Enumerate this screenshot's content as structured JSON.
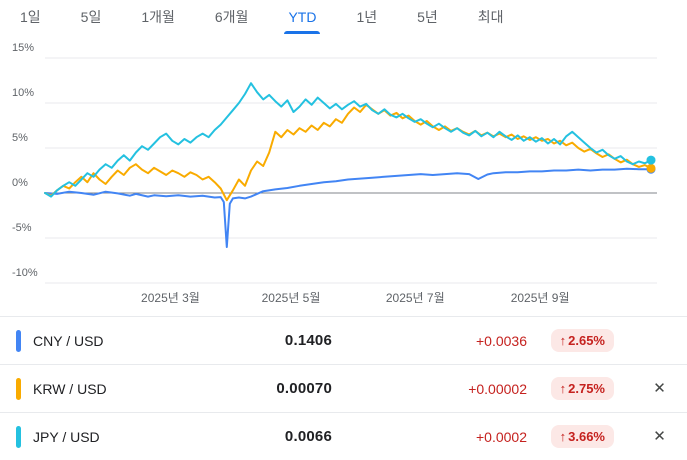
{
  "tabs": [
    "1일",
    "5일",
    "1개월",
    "6개월",
    "YTD",
    "1년",
    "5년",
    "최대"
  ],
  "ui": {
    "accent_color": "#1a73e8",
    "close_icon": "✕",
    "negative_text_color": "#c5221f",
    "badge_bg_color": "#fce8e6"
  },
  "chart_data": {
    "type": "line",
    "title": "",
    "xlabel": "",
    "ylabel": "",
    "ylim": [
      -10,
      15
    ],
    "yticks": [
      15,
      10,
      5,
      0,
      -5,
      -10
    ],
    "ytick_suffix": "%",
    "grid": true,
    "grid_color": "#e8eaed",
    "zero_line_color": "#80868b",
    "legend_position": "bottom-table",
    "xticks": [
      {
        "label": "2025년 3월",
        "pos": 0.205
      },
      {
        "label": "2025년 5월",
        "pos": 0.402
      },
      {
        "label": "2025년 7월",
        "pos": 0.605
      },
      {
        "label": "2025년 9월",
        "pos": 0.809
      }
    ],
    "series": [
      {
        "name": "CNY / USD",
        "color": "#4285f4",
        "points": [
          [
            0,
            0
          ],
          [
            0.02,
            -0.1
          ],
          [
            0.04,
            0.15
          ],
          [
            0.06,
            0
          ],
          [
            0.08,
            -0.2
          ],
          [
            0.1,
            0.15
          ],
          [
            0.12,
            -0.05
          ],
          [
            0.14,
            -0.3
          ],
          [
            0.15,
            -0.1
          ],
          [
            0.17,
            -0.4
          ],
          [
            0.18,
            -0.25
          ],
          [
            0.2,
            -0.35
          ],
          [
            0.22,
            -0.25
          ],
          [
            0.24,
            -0.4
          ],
          [
            0.26,
            -0.3
          ],
          [
            0.28,
            -0.5
          ],
          [
            0.29,
            -0.45
          ],
          [
            0.295,
            -1
          ],
          [
            0.3,
            -6
          ],
          [
            0.305,
            -1.2
          ],
          [
            0.31,
            -0.6
          ],
          [
            0.32,
            -0.5
          ],
          [
            0.33,
            -0.6
          ],
          [
            0.34,
            -0.4
          ],
          [
            0.36,
            0.2
          ],
          [
            0.38,
            0.4
          ],
          [
            0.4,
            0.55
          ],
          [
            0.42,
            0.8
          ],
          [
            0.44,
            1
          ],
          [
            0.46,
            1.2
          ],
          [
            0.48,
            1.3
          ],
          [
            0.5,
            1.5
          ],
          [
            0.52,
            1.6
          ],
          [
            0.54,
            1.7
          ],
          [
            0.56,
            1.8
          ],
          [
            0.58,
            1.9
          ],
          [
            0.6,
            2
          ],
          [
            0.62,
            2.1
          ],
          [
            0.64,
            2
          ],
          [
            0.66,
            2.1
          ],
          [
            0.68,
            2.2
          ],
          [
            0.7,
            2.1
          ],
          [
            0.715,
            1.55
          ],
          [
            0.73,
            2.05
          ],
          [
            0.74,
            2.2
          ],
          [
            0.76,
            2.3
          ],
          [
            0.78,
            2.3
          ],
          [
            0.8,
            2.4
          ],
          [
            0.82,
            2.4
          ],
          [
            0.84,
            2.5
          ],
          [
            0.86,
            2.5
          ],
          [
            0.88,
            2.6
          ],
          [
            0.9,
            2.5
          ],
          [
            0.92,
            2.6
          ],
          [
            0.94,
            2.6
          ],
          [
            0.96,
            2.7
          ],
          [
            0.98,
            2.65
          ],
          [
            1,
            2.65
          ]
        ]
      },
      {
        "name": "KRW / USD",
        "color": "#f9ab00",
        "points": [
          [
            0,
            0
          ],
          [
            0.01,
            -0.3
          ],
          [
            0.02,
            0.3
          ],
          [
            0.03,
            0.8
          ],
          [
            0.04,
            0.5
          ],
          [
            0.05,
            1.2
          ],
          [
            0.06,
            1.8
          ],
          [
            0.07,
            1.2
          ],
          [
            0.08,
            2.2
          ],
          [
            0.09,
            1.5
          ],
          [
            0.1,
            1
          ],
          [
            0.11,
            1.8
          ],
          [
            0.12,
            2.5
          ],
          [
            0.13,
            2
          ],
          [
            0.14,
            2.8
          ],
          [
            0.15,
            3.2
          ],
          [
            0.16,
            2.6
          ],
          [
            0.17,
            2.2
          ],
          [
            0.18,
            2.8
          ],
          [
            0.19,
            2.4
          ],
          [
            0.2,
            2
          ],
          [
            0.21,
            2.5
          ],
          [
            0.22,
            2.2
          ],
          [
            0.23,
            1.8
          ],
          [
            0.24,
            2.3
          ],
          [
            0.25,
            2
          ],
          [
            0.26,
            1.5
          ],
          [
            0.27,
            1.8
          ],
          [
            0.28,
            1.2
          ],
          [
            0.29,
            0.5
          ],
          [
            0.3,
            -0.8
          ],
          [
            0.31,
            0.3
          ],
          [
            0.32,
            1.5
          ],
          [
            0.33,
            0.8
          ],
          [
            0.34,
            2.5
          ],
          [
            0.35,
            3.5
          ],
          [
            0.36,
            3
          ],
          [
            0.37,
            4.5
          ],
          [
            0.38,
            6.8
          ],
          [
            0.39,
            6.2
          ],
          [
            0.4,
            7
          ],
          [
            0.41,
            6.5
          ],
          [
            0.42,
            7.2
          ],
          [
            0.43,
            6.8
          ],
          [
            0.44,
            7.5
          ],
          [
            0.45,
            7
          ],
          [
            0.46,
            7.8
          ],
          [
            0.47,
            7.4
          ],
          [
            0.48,
            8.2
          ],
          [
            0.49,
            7.8
          ],
          [
            0.5,
            8.8
          ],
          [
            0.51,
            9.5
          ],
          [
            0.52,
            9
          ],
          [
            0.53,
            9.8
          ],
          [
            0.54,
            9.3
          ],
          [
            0.55,
            8.8
          ],
          [
            0.56,
            9.2
          ],
          [
            0.57,
            8.6
          ],
          [
            0.58,
            8.9
          ],
          [
            0.59,
            8.3
          ],
          [
            0.6,
            8.6
          ],
          [
            0.61,
            8
          ],
          [
            0.62,
            7.6
          ],
          [
            0.63,
            8
          ],
          [
            0.64,
            7.4
          ],
          [
            0.65,
            7
          ],
          [
            0.66,
            7.4
          ],
          [
            0.67,
            6.9
          ],
          [
            0.68,
            7.2
          ],
          [
            0.69,
            6.8
          ],
          [
            0.7,
            6.5
          ],
          [
            0.71,
            6.9
          ],
          [
            0.72,
            6.4
          ],
          [
            0.73,
            6.7
          ],
          [
            0.74,
            6.3
          ],
          [
            0.75,
            6.6
          ],
          [
            0.76,
            6.2
          ],
          [
            0.77,
            6.5
          ],
          [
            0.78,
            6
          ],
          [
            0.79,
            6.3
          ],
          [
            0.8,
            5.9
          ],
          [
            0.81,
            6.2
          ],
          [
            0.82,
            5.8
          ],
          [
            0.83,
            6
          ],
          [
            0.84,
            5.5
          ],
          [
            0.85,
            5.8
          ],
          [
            0.86,
            5.3
          ],
          [
            0.87,
            5.6
          ],
          [
            0.88,
            5
          ],
          [
            0.89,
            4.6
          ],
          [
            0.9,
            4.9
          ],
          [
            0.91,
            4.4
          ],
          [
            0.92,
            4
          ],
          [
            0.93,
            4.3
          ],
          [
            0.94,
            3.8
          ],
          [
            0.95,
            3.4
          ],
          [
            0.96,
            3.7
          ],
          [
            0.97,
            3.2
          ],
          [
            0.98,
            2.9
          ],
          [
            0.99,
            3.1
          ],
          [
            1,
            2.75
          ]
        ]
      },
      {
        "name": "JPY / USD",
        "color": "#24c1e0",
        "points": [
          [
            0,
            0
          ],
          [
            0.01,
            -0.4
          ],
          [
            0.02,
            0.3
          ],
          [
            0.03,
            0.8
          ],
          [
            0.04,
            1.2
          ],
          [
            0.05,
            0.8
          ],
          [
            0.06,
            1.5
          ],
          [
            0.07,
            2.2
          ],
          [
            0.08,
            1.8
          ],
          [
            0.09,
            2.6
          ],
          [
            0.1,
            3.2
          ],
          [
            0.11,
            2.8
          ],
          [
            0.12,
            3.6
          ],
          [
            0.13,
            4.2
          ],
          [
            0.14,
            3.6
          ],
          [
            0.15,
            4.5
          ],
          [
            0.16,
            5.2
          ],
          [
            0.17,
            4.8
          ],
          [
            0.18,
            5.5
          ],
          [
            0.19,
            6.2
          ],
          [
            0.2,
            6.6
          ],
          [
            0.21,
            5.8
          ],
          [
            0.22,
            5.4
          ],
          [
            0.23,
            6
          ],
          [
            0.24,
            5.6
          ],
          [
            0.25,
            6.2
          ],
          [
            0.26,
            6.6
          ],
          [
            0.27,
            6.2
          ],
          [
            0.28,
            7
          ],
          [
            0.29,
            7.6
          ],
          [
            0.3,
            8.4
          ],
          [
            0.31,
            9.2
          ],
          [
            0.32,
            10
          ],
          [
            0.33,
            11
          ],
          [
            0.34,
            12.2
          ],
          [
            0.35,
            11.2
          ],
          [
            0.36,
            10.4
          ],
          [
            0.37,
            10.9
          ],
          [
            0.38,
            10.2
          ],
          [
            0.39,
            9.6
          ],
          [
            0.4,
            10.3
          ],
          [
            0.41,
            9
          ],
          [
            0.42,
            9.6
          ],
          [
            0.43,
            10.4
          ],
          [
            0.44,
            9.8
          ],
          [
            0.45,
            10.6
          ],
          [
            0.46,
            10
          ],
          [
            0.47,
            9.4
          ],
          [
            0.48,
            9.9
          ],
          [
            0.49,
            9.3
          ],
          [
            0.5,
            9.8
          ],
          [
            0.51,
            10.2
          ],
          [
            0.52,
            9.6
          ],
          [
            0.53,
            9.9
          ],
          [
            0.54,
            9.2
          ],
          [
            0.55,
            8.8
          ],
          [
            0.56,
            9.3
          ],
          [
            0.57,
            8.7
          ],
          [
            0.58,
            8.4
          ],
          [
            0.59,
            8.8
          ],
          [
            0.6,
            8.3
          ],
          [
            0.61,
            7.9
          ],
          [
            0.62,
            8.2
          ],
          [
            0.63,
            7.7
          ],
          [
            0.64,
            7.3
          ],
          [
            0.65,
            7.7
          ],
          [
            0.66,
            7.2
          ],
          [
            0.67,
            6.8
          ],
          [
            0.68,
            7.2
          ],
          [
            0.69,
            6.7
          ],
          [
            0.7,
            6.4
          ],
          [
            0.71,
            6.9
          ],
          [
            0.72,
            6.3
          ],
          [
            0.73,
            6.7
          ],
          [
            0.74,
            6.2
          ],
          [
            0.75,
            6.8
          ],
          [
            0.76,
            6.3
          ],
          [
            0.77,
            5.9
          ],
          [
            0.78,
            6.4
          ],
          [
            0.79,
            5.8
          ],
          [
            0.8,
            6.2
          ],
          [
            0.81,
            5.7
          ],
          [
            0.82,
            6.1
          ],
          [
            0.83,
            5.5
          ],
          [
            0.84,
            6
          ],
          [
            0.85,
            5.4
          ],
          [
            0.86,
            6.3
          ],
          [
            0.87,
            6.8
          ],
          [
            0.88,
            6.2
          ],
          [
            0.89,
            5.6
          ],
          [
            0.9,
            5
          ],
          [
            0.91,
            4.5
          ],
          [
            0.92,
            4.8
          ],
          [
            0.93,
            4.2
          ],
          [
            0.94,
            3.8
          ],
          [
            0.95,
            4.1
          ],
          [
            0.96,
            3.5
          ],
          [
            0.97,
            3.2
          ],
          [
            0.98,
            3.5
          ],
          [
            0.99,
            3.3
          ],
          [
            1,
            3.66
          ]
        ]
      }
    ]
  },
  "quotes": [
    {
      "pair": "CNY / USD",
      "value": "0.1406",
      "change": "+0.0036",
      "arrow": "↑",
      "percent": "2.65%",
      "color": "#4285f4",
      "closable": false
    },
    {
      "pair": "KRW / USD",
      "value": "0.00070",
      "change": "+0.00002",
      "arrow": "↑",
      "percent": "2.75%",
      "color": "#f9ab00",
      "closable": true
    },
    {
      "pair": "JPY / USD",
      "value": "0.0066",
      "change": "+0.0002",
      "arrow": "↑",
      "percent": "3.66%",
      "color": "#24c1e0",
      "closable": true
    }
  ]
}
